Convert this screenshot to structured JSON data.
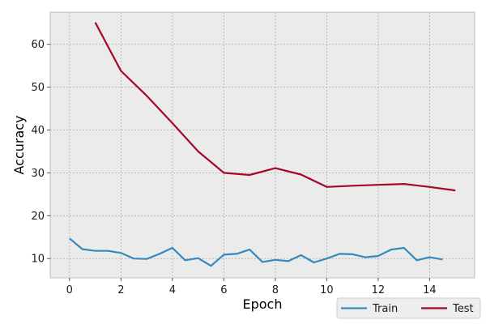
{
  "chart_data": {
    "type": "line",
    "xlabel": "Epoch",
    "ylabel": "Accuracy",
    "xlim": [
      -0.75,
      15.75
    ],
    "ylim": [
      5.5,
      67.5
    ],
    "xticks": [
      0,
      2,
      4,
      6,
      8,
      10,
      12,
      14
    ],
    "yticks": [
      10,
      20,
      30,
      40,
      50,
      60
    ],
    "grid": true,
    "legend_position": "bottom-right",
    "colors": {
      "background": "#ebebeb",
      "grid": "#b0b0b0",
      "frame": "#bdbdbd"
    },
    "series": [
      {
        "name": "Train",
        "color": "#348abd",
        "x": [
          0,
          0.5,
          1,
          1.5,
          2,
          2.5,
          3,
          3.5,
          4,
          4.5,
          5,
          5.5,
          6,
          6.5,
          7,
          7.5,
          8,
          8.5,
          9,
          9.5,
          10,
          10.5,
          11,
          11.5,
          12,
          12.5,
          13,
          13.5,
          14,
          14.5
        ],
        "y": [
          14.7,
          12.2,
          11.8,
          11.8,
          11.3,
          10.0,
          9.9,
          11.1,
          12.5,
          9.6,
          10.1,
          8.3,
          10.9,
          11.1,
          12.1,
          9.2,
          9.7,
          9.4,
          10.8,
          9.1,
          10.0,
          11.1,
          11.0,
          10.3,
          10.6,
          12.1,
          12.5,
          9.6,
          10.3,
          9.8
        ]
      },
      {
        "name": "Test",
        "color": "#a60628",
        "x": [
          1,
          2,
          3,
          4,
          5,
          6,
          7,
          8,
          9,
          10,
          11,
          12,
          13,
          14,
          15
        ],
        "y": [
          65.1,
          53.8,
          48.0,
          41.6,
          35.0,
          30.0,
          29.5,
          31.1,
          29.6,
          26.7,
          27.0,
          27.2,
          27.4,
          26.7,
          25.9
        ]
      }
    ]
  }
}
